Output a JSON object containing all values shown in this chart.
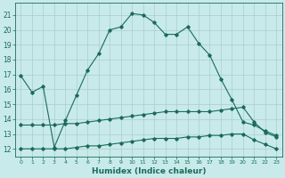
{
  "xlabel": "Humidex (Indice chaleur)",
  "bg_color": "#c8eaea",
  "grid_color": "#aacccc",
  "line_color": "#1a6b5a",
  "x_ticks": [
    0,
    1,
    2,
    3,
    4,
    5,
    6,
    7,
    8,
    9,
    10,
    11,
    12,
    13,
    14,
    15,
    16,
    17,
    18,
    19,
    20,
    21,
    22,
    23
  ],
  "y_ticks": [
    12,
    13,
    14,
    15,
    16,
    17,
    18,
    19,
    20,
    21
  ],
  "ylim": [
    11.5,
    21.8
  ],
  "xlim": [
    -0.5,
    23.5
  ],
  "series1_x": [
    0,
    1,
    2,
    3,
    4,
    5,
    6,
    7,
    8,
    9,
    10,
    11,
    12,
    13,
    14,
    15,
    16,
    17,
    18,
    19,
    20,
    21,
    22,
    23
  ],
  "series1_y": [
    16.9,
    15.8,
    16.2,
    12.1,
    13.9,
    15.6,
    17.3,
    18.4,
    20.0,
    20.2,
    21.1,
    21.0,
    20.5,
    19.7,
    19.7,
    20.2,
    19.1,
    18.3,
    16.7,
    15.3,
    13.8,
    13.6,
    13.2,
    12.9
  ],
  "series2_x": [
    0,
    1,
    2,
    3,
    4,
    5,
    6,
    7,
    8,
    9,
    10,
    11,
    12,
    13,
    14,
    15,
    16,
    17,
    18,
    19,
    20,
    21,
    22,
    23
  ],
  "series2_y": [
    13.6,
    13.6,
    13.6,
    13.6,
    13.7,
    13.7,
    13.8,
    13.9,
    14.0,
    14.1,
    14.2,
    14.3,
    14.4,
    14.5,
    14.5,
    14.5,
    14.5,
    14.5,
    14.6,
    14.7,
    14.8,
    13.8,
    13.1,
    12.8
  ],
  "series3_x": [
    0,
    1,
    2,
    3,
    4,
    5,
    6,
    7,
    8,
    9,
    10,
    11,
    12,
    13,
    14,
    15,
    16,
    17,
    18,
    19,
    20,
    21,
    22,
    23
  ],
  "series3_y": [
    12.0,
    12.0,
    12.0,
    12.0,
    12.0,
    12.1,
    12.2,
    12.2,
    12.3,
    12.4,
    12.5,
    12.6,
    12.7,
    12.7,
    12.7,
    12.8,
    12.8,
    12.9,
    12.9,
    13.0,
    13.0,
    12.6,
    12.3,
    12.0
  ],
  "lw": 0.8,
  "ms": 1.8,
  "tick_fontsize": 5.5,
  "xlabel_fontsize": 6.5
}
